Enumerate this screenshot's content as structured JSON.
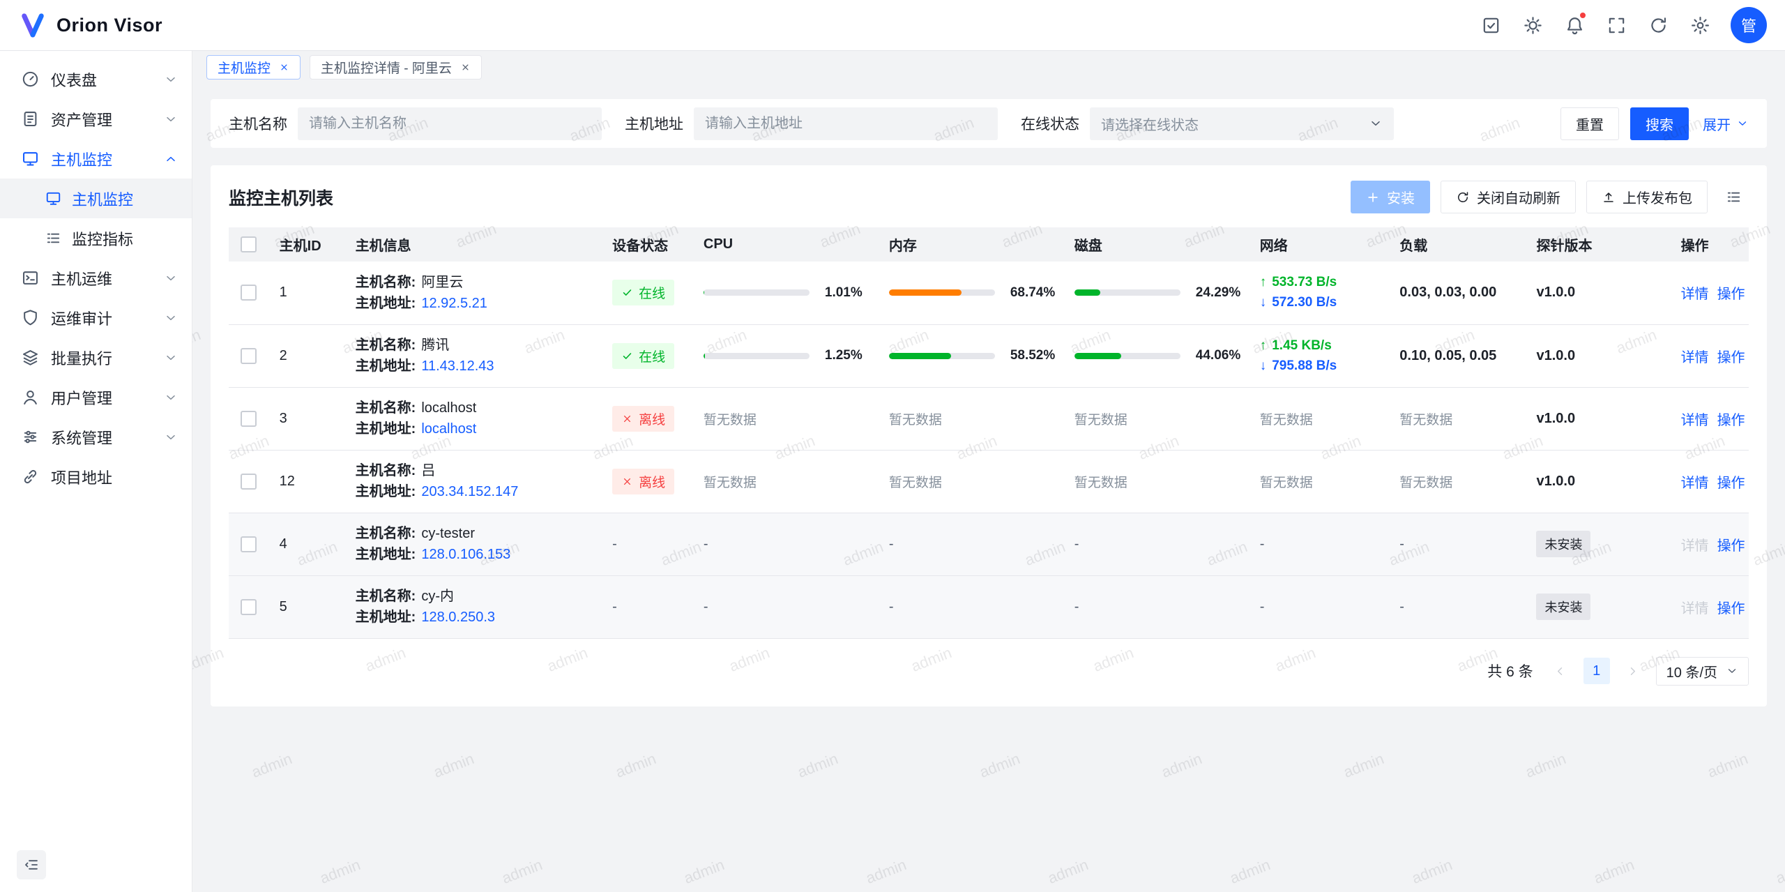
{
  "app": {
    "name": "Orion Visor",
    "avatar": "管"
  },
  "tabs": [
    {
      "label": "主机监控"
    },
    {
      "label": "主机监控详情 - 阿里云"
    }
  ],
  "sidebar": {
    "items": [
      {
        "label": "仪表盘"
      },
      {
        "label": "资产管理"
      },
      {
        "label": "主机监控"
      },
      {
        "label": "主机运维"
      },
      {
        "label": "运维审计"
      },
      {
        "label": "批量执行"
      },
      {
        "label": "用户管理"
      },
      {
        "label": "系统管理"
      },
      {
        "label": "项目地址"
      }
    ],
    "submenu": [
      {
        "label": "主机监控"
      },
      {
        "label": "监控指标"
      }
    ]
  },
  "filter": {
    "name_label": "主机名称",
    "name_placeholder": "请输入主机名称",
    "addr_label": "主机地址",
    "addr_placeholder": "请输入主机地址",
    "status_label": "在线状态",
    "status_placeholder": "请选择在线状态",
    "reset": "重置",
    "search": "搜索",
    "expand": "展开"
  },
  "list": {
    "title": "监控主机列表",
    "install": "安装",
    "auto_refresh": "关闭自动刷新",
    "upload": "上传发布包",
    "columns": {
      "id": "主机ID",
      "info": "主机信息",
      "status": "设备状态",
      "cpu": "CPU",
      "memory": "内存",
      "disk": "磁盘",
      "network": "网络",
      "load": "负载",
      "version": "探针版本",
      "actions": "操作"
    },
    "labels": {
      "name": "主机名称:",
      "addr": "主机地址:",
      "empty": "暂无数据",
      "dash": "-",
      "not_installed": "未安装",
      "detail": "详情",
      "action": "操作",
      "up": "↑",
      "down": "↓"
    },
    "colors": {
      "green": "#00b42a",
      "orange": "#ff7d00",
      "blue": "#165dff",
      "red": "#f53f3f"
    },
    "rows": [
      {
        "id": "1",
        "name": "阿里云",
        "addr": "12.92.5.21",
        "status": "在线",
        "cpu": {
          "pct": 1.01,
          "text": "1.01%",
          "color": "#00b42a"
        },
        "memory": {
          "pct": 68.74,
          "text": "68.74%",
          "color": "#ff7d00"
        },
        "disk": {
          "pct": 24.29,
          "text": "24.29%",
          "color": "#00b42a"
        },
        "net_up": "533.73 B/s",
        "net_down": "572.30 B/s",
        "load": "0.03, 0.03, 0.00",
        "version": "v1.0.0"
      },
      {
        "id": "2",
        "name": "腾讯",
        "addr": "11.43.12.43",
        "status": "在线",
        "cpu": {
          "pct": 1.25,
          "text": "1.25%",
          "color": "#00b42a"
        },
        "memory": {
          "pct": 58.52,
          "text": "58.52%",
          "color": "#00b42a"
        },
        "disk": {
          "pct": 44.06,
          "text": "44.06%",
          "color": "#00b42a"
        },
        "net_up": "1.45 KB/s",
        "net_down": "795.88 B/s",
        "load": "0.10, 0.05, 0.05",
        "version": "v1.0.0"
      },
      {
        "id": "3",
        "name": "localhost",
        "addr": "localhost",
        "status": "离线",
        "version": "v1.0.0"
      },
      {
        "id": "12",
        "name": "吕",
        "addr": "203.34.152.147",
        "status": "离线",
        "version": "v1.0.0"
      },
      {
        "id": "4",
        "name": "cy-tester",
        "addr": "128.0.106.153",
        "version": "未安装"
      },
      {
        "id": "5",
        "name": "cy-内",
        "addr": "128.0.250.3",
        "version": "未安装"
      }
    ]
  },
  "pagination": {
    "total": "共 6 条",
    "page": "1",
    "size": "10 条/页"
  },
  "watermark": {
    "text": "admin"
  }
}
